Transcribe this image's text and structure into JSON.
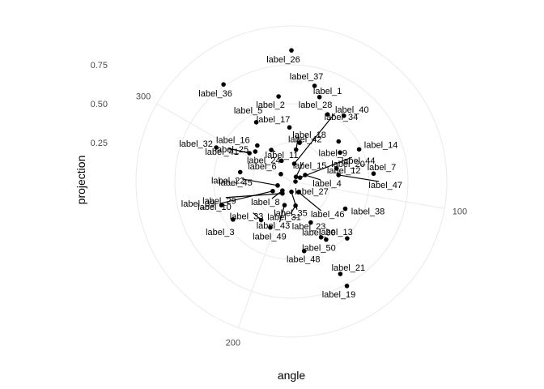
{
  "chart_data": {
    "type": "scatter",
    "coord": "polar",
    "xlabel": "angle",
    "ylabel": "projection",
    "theta_range": [
      0,
      360
    ],
    "theta_ticks": [
      "100",
      "200",
      "300"
    ],
    "theta_tick_values": [
      100,
      200,
      300
    ],
    "r_ticks": [
      "0.25",
      "0.50",
      "0.75"
    ],
    "r_tick_values": [
      0.25,
      0.5,
      0.75
    ],
    "r_range": [
      0,
      1
    ],
    "grid": true,
    "points": [
      {
        "label": "label_1",
        "angle": 18.4,
        "projection": 0.572
      },
      {
        "label": "label_2",
        "angle": 351.4,
        "projection": 0.553
      },
      {
        "label": "label_3",
        "angle": 237.0,
        "projection": 0.448
      },
      {
        "label": "label_4",
        "angle": 64.6,
        "projection": 0.098
      },
      {
        "label": "label_5",
        "angle": 329.3,
        "projection": 0.443
      },
      {
        "label": "label_6",
        "angle": 305.0,
        "projection": 0.083
      },
      {
        "label": "label_7",
        "angle": 84.5,
        "projection": 0.531
      },
      {
        "label": "label_8",
        "angle": 225.0,
        "projection": 0.082
      },
      {
        "label": "label_9",
        "angle": 49.7,
        "projection": 0.398
      },
      {
        "label": "label_10",
        "angle": 242.8,
        "projection": 0.135
      },
      {
        "label": "label_11",
        "angle": 327.4,
        "projection": 0.241
      },
      {
        "label": "label_12",
        "angle": 73.9,
        "projection": 0.302
      },
      {
        "label": "label_13",
        "angle": 135.5,
        "projection": 0.512
      },
      {
        "label": "label_14",
        "angle": 64.6,
        "projection": 0.482
      },
      {
        "label": "label_15",
        "angle": 44.1,
        "projection": 0.042
      },
      {
        "label": "label_16",
        "angle": 316.5,
        "projection": 0.319
      },
      {
        "label": "label_17",
        "angle": 357.9,
        "projection": 0.348
      },
      {
        "label": "label_18",
        "angle": 11.9,
        "projection": 0.255
      },
      {
        "label": "label_19",
        "angle": 152.0,
        "projection": 0.76
      },
      {
        "label": "label_20",
        "angle": 59.2,
        "projection": 0.364
      },
      {
        "label": "label_21",
        "angle": 152.1,
        "projection": 0.672
      },
      {
        "label": "label_22",
        "angle": 280.4,
        "projection": 0.335
      },
      {
        "label": "label_23",
        "angle": 152.0,
        "projection": 0.406
      },
      {
        "label": "label_24",
        "angle": 334.5,
        "projection": 0.148
      },
      {
        "label": "label_25",
        "angle": 309.6,
        "projection": 0.302
      },
      {
        "label": "label_26",
        "angle": 0.0,
        "projection": 0.843
      },
      {
        "label": "label_27",
        "angle": 90.0,
        "projection": 0.026
      },
      {
        "label": "label_28",
        "angle": 28.3,
        "projection": 0.49
      },
      {
        "label": "label_29",
        "angle": 216.9,
        "projection": 0.096
      },
      {
        "label": "label_30",
        "angle": 154.7,
        "projection": 0.291
      },
      {
        "label": "label_31",
        "angle": 170.3,
        "projection": 0.157
      },
      {
        "label": "label_32",
        "angle": 294.3,
        "projection": 0.531
      },
      {
        "label": "label_33",
        "angle": 218.2,
        "projection": 0.315
      },
      {
        "label": "label_34",
        "angle": 9.0,
        "projection": 0.116
      },
      {
        "label": "label_35",
        "angle": 180.0,
        "projection": 0.066
      },
      {
        "label": "label_36",
        "angle": 325.0,
        "projection": 0.762
      },
      {
        "label": "label_37",
        "angle": 13.6,
        "projection": 0.633
      },
      {
        "label": "label_38",
        "angle": 116.8,
        "projection": 0.388
      },
      {
        "label": "label_39",
        "angle": 251.4,
        "projection": 0.475
      },
      {
        "label": "label_40",
        "angle": 38.6,
        "projection": 0.541
      },
      {
        "label": "label_41",
        "angle": 304.0,
        "projection": 0.326
      },
      {
        "label": "label_42",
        "angle": 8.3,
        "projection": 0.207
      },
      {
        "label": "label_43",
        "angle": 196.3,
        "projection": 0.158
      },
      {
        "label": "label_44",
        "angle": 65.6,
        "projection": 0.061
      },
      {
        "label": "label_45",
        "angle": 254.1,
        "projection": 0.092
      },
      {
        "label": "label_46",
        "angle": 146.3,
        "projection": 0.082
      },
      {
        "label": "label_47",
        "angle": 82.1,
        "projection": 0.306
      },
      {
        "label": "label_48",
        "angle": 169.6,
        "projection": 0.454
      },
      {
        "label": "label_49",
        "angle": 204.7,
        "projection": 0.325
      },
      {
        "label": "label_50",
        "angle": 149.1,
        "projection": 0.435
      }
    ]
  }
}
